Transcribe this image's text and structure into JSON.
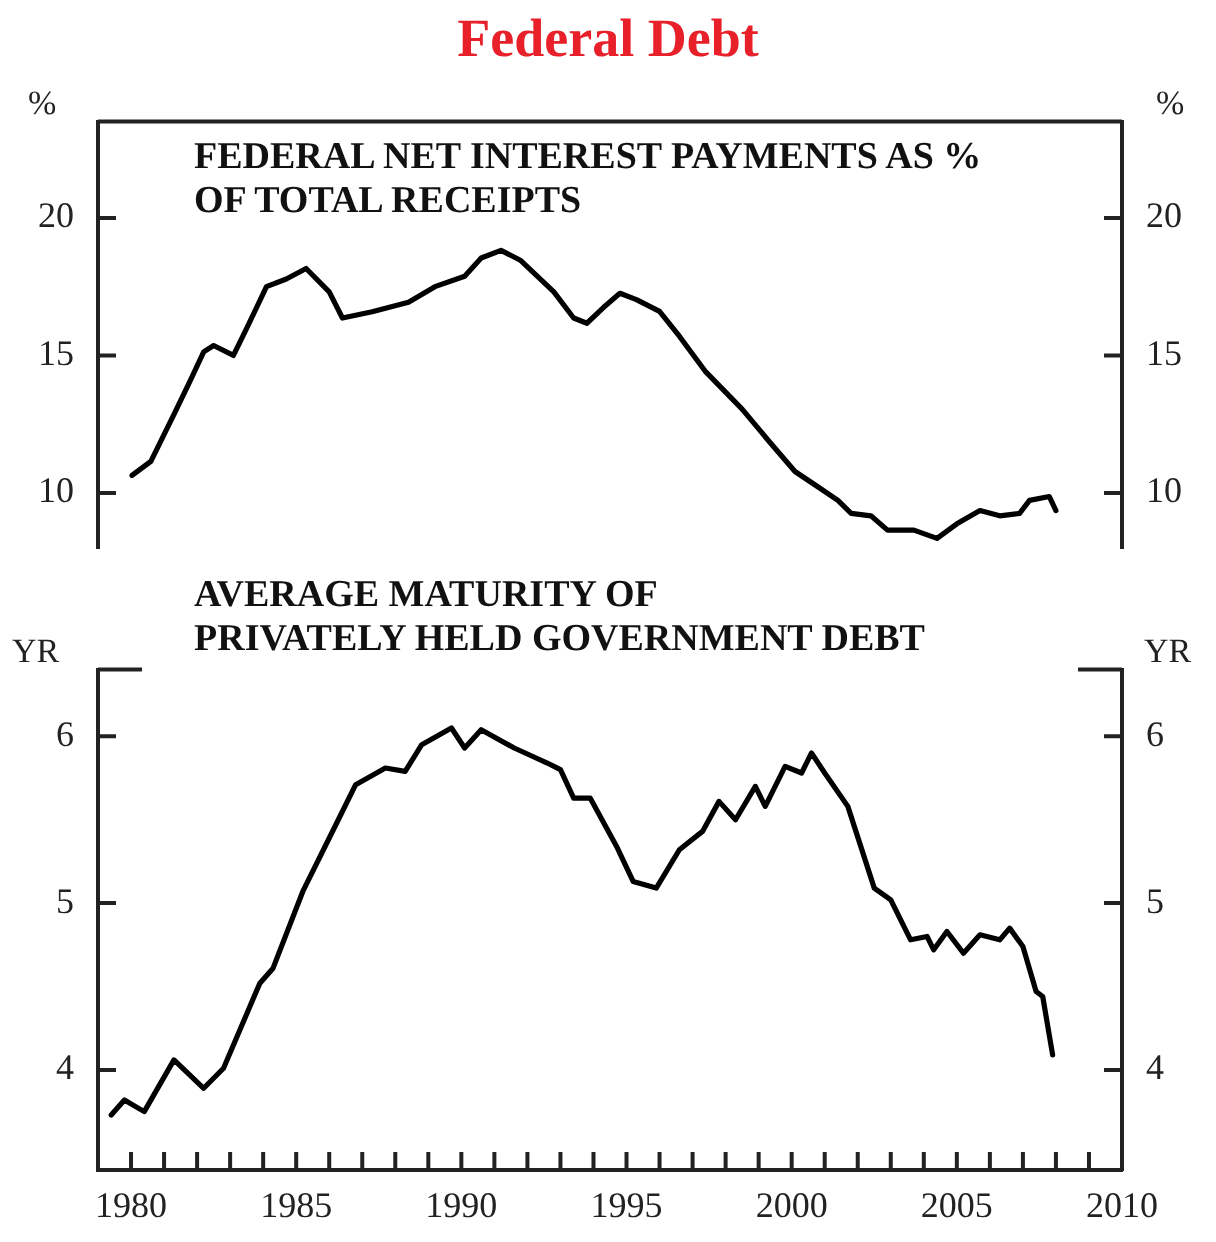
{
  "chart_data": [
    {
      "type": "line",
      "title": "Federal Debt",
      "ylabel": "%",
      "y2label": "%",
      "annotations": [
        "FEDERAL NET INTEREST PAYMENTS AS %\nOF TOTAL RECEIPTS"
      ],
      "x": [
        1980.03,
        1980.6,
        1981.3,
        1981.8,
        1982.2,
        1982.5,
        1983.1,
        1983.5,
        1984.1,
        1984.7,
        1985.3,
        1986.0,
        1986.4,
        1987.3,
        1988.4,
        1989.2,
        1990.1,
        1990.6,
        1991.2,
        1991.8,
        1992.8,
        1993.4,
        1993.8,
        1994.3,
        1994.8,
        1995.3,
        1996.0,
        1996.6,
        1997.4,
        1998.5,
        1999.3,
        2000.1,
        2000.7,
        2001.4,
        2001.8,
        2002.4,
        2002.9,
        2003.7,
        2004.4,
        2005.0,
        2005.7,
        2006.3,
        2006.9,
        2007.2,
        2007.8,
        2008.0
      ],
      "series": [
        {
          "color": "#000000",
          "values": [
            10.64,
            11.15,
            12.86,
            14.1,
            15.13,
            15.36,
            15.0,
            15.98,
            17.5,
            17.78,
            18.16,
            17.31,
            16.36,
            16.59,
            16.93,
            17.5,
            17.88,
            18.54,
            18.82,
            18.45,
            17.31,
            16.36,
            16.17,
            16.74,
            17.26,
            17.03,
            16.6,
            15.7,
            14.4,
            13.05,
            11.9,
            10.78,
            10.3,
            9.73,
            9.26,
            9.17,
            8.65,
            8.65,
            8.35,
            8.88,
            9.36,
            9.17,
            9.26,
            9.73,
            9.87,
            9.36
          ]
        }
      ],
      "xlim": [
        1979,
        2010
      ],
      "ylim": [
        8,
        23.5
      ],
      "yticks": [
        10,
        15,
        20
      ],
      "y2lim": [
        8,
        23.5
      ],
      "y2ticks": [
        10,
        15,
        20
      ],
      "tick_labels": "y",
      "grid": false,
      "legend": false,
      "marker": "none",
      "line_style": "solid"
    },
    {
      "type": "line",
      "ylabel": "YR",
      "y2label": "YR",
      "annotations": [
        "AVERAGE MATURITY OF\nPRIVATELY HELD GOVERNMENT DEBT"
      ],
      "x": [
        1979.4,
        1979.8,
        1980.4,
        1981.3,
        1982.2,
        1982.8,
        1983.9,
        1984.3,
        1985.2,
        1986.2,
        1986.8,
        1987.7,
        1988.3,
        1988.8,
        1989.7,
        1990.1,
        1990.6,
        1991.6,
        1992.6,
        1993.0,
        1993.4,
        1993.9,
        1994.7,
        1995.2,
        1995.9,
        1996.6,
        1997.3,
        1997.8,
        1998.3,
        1998.9,
        1999.2,
        1999.8,
        2000.3,
        2000.6,
        2001.0,
        2001.7,
        2002.5,
        2003.0,
        2003.6,
        2004.1,
        2004.3,
        2004.7,
        2005.2,
        2005.7,
        2006.3,
        2006.6,
        2007.0,
        2007.4,
        2007.6,
        2007.9
      ],
      "series": [
        {
          "color": "#000000",
          "values": [
            3.73,
            3.82,
            3.75,
            4.06,
            3.89,
            4.01,
            4.52,
            4.61,
            5.07,
            5.47,
            5.71,
            5.81,
            5.79,
            5.95,
            6.05,
            5.93,
            6.04,
            5.93,
            5.84,
            5.8,
            5.63,
            5.63,
            5.34,
            5.13,
            5.09,
            5.32,
            5.43,
            5.61,
            5.5,
            5.7,
            5.58,
            5.82,
            5.78,
            5.9,
            5.78,
            5.58,
            5.09,
            5.02,
            4.78,
            4.8,
            4.72,
            4.83,
            4.7,
            4.81,
            4.78,
            4.85,
            4.74,
            4.47,
            4.44,
            4.09
          ]
        }
      ],
      "xlim": [
        1979,
        2010
      ],
      "xticks": [
        1980,
        {
          "value": 1981,
          "label": null
        },
        {
          "value": 1982,
          "label": null
        },
        {
          "value": 1983,
          "label": null
        },
        {
          "value": 1984,
          "label": null
        },
        1985,
        {
          "value": 1986,
          "label": null
        },
        {
          "value": 1987,
          "label": null
        },
        {
          "value": 1988,
          "label": null
        },
        {
          "value": 1989,
          "label": null
        },
        1990,
        {
          "value": 1991,
          "label": null
        },
        {
          "value": 1992,
          "label": null
        },
        {
          "value": 1993,
          "label": null
        },
        {
          "value": 1994,
          "label": null
        },
        1995,
        {
          "value": 1996,
          "label": null
        },
        {
          "value": 1997,
          "label": null
        },
        {
          "value": 1998,
          "label": null
        },
        {
          "value": 1999,
          "label": null
        },
        2000,
        {
          "value": 2001,
          "label": null
        },
        {
          "value": 2002,
          "label": null
        },
        {
          "value": 2003,
          "label": null
        },
        {
          "value": 2004,
          "label": null
        },
        2005,
        {
          "value": 2006,
          "label": null
        },
        {
          "value": 2007,
          "label": null
        },
        {
          "value": 2008,
          "label": null
        },
        {
          "value": 2009,
          "label": null
        },
        2010
      ],
      "ylim": [
        3.4,
        6.4
      ],
      "yticks": [
        4,
        5,
        6
      ],
      "y2lim": [
        3.4,
        6.4
      ],
      "y2ticks": [
        4,
        5,
        6
      ],
      "grid": false,
      "legend": false,
      "marker": "none",
      "line_style": "solid"
    }
  ]
}
